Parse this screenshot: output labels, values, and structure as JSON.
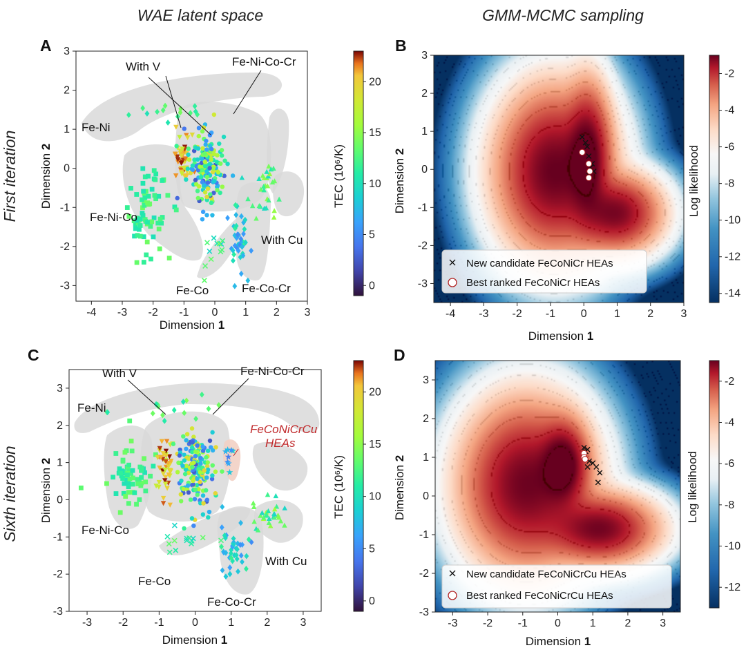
{
  "figure": {
    "col_titles": [
      "WAE latent space",
      "GMM-MCMC sampling"
    ],
    "row_titles": [
      "First iteration",
      "Sixth iteration"
    ],
    "dim1": "Dimension ",
    "dim2": "Dimension ",
    "dim_num1": "1",
    "dim_num2": "2"
  },
  "chart_data": [
    {
      "panel": "A",
      "type": "scatter",
      "title": "WAE latent space",
      "xlabel": "Dimension 1",
      "ylabel": "Dimension 2",
      "xlim": [
        -4.5,
        3
      ],
      "ylim": [
        -3.4,
        3
      ],
      "xticks": [
        -4,
        -3,
        -2,
        -1,
        0,
        1,
        2,
        3
      ],
      "yticks": [
        -3,
        -2,
        -1,
        0,
        1,
        2,
        3
      ],
      "colorbar": {
        "label": "TEC (10⁶/K)",
        "ticks": [
          0,
          5,
          10,
          15,
          20
        ],
        "range": [
          -1,
          23
        ]
      },
      "clusters": [
        {
          "name": "Fe-Ni",
          "marker": "diamond",
          "center": [
            -1.4,
            1.45
          ],
          "spread": [
            1.5,
            0.35
          ],
          "tec": [
            10,
            15
          ],
          "n": 14
        },
        {
          "name": "Fe-Ni-Co",
          "marker": "square",
          "center": [
            -2.2,
            -1.1
          ],
          "spread": [
            0.8,
            1.2
          ],
          "tec": [
            10,
            14
          ],
          "n": 70
        },
        {
          "name": "With V",
          "marker": "triangle-down",
          "center": [
            -1.05,
            0.25
          ],
          "spread": [
            0.3,
            0.7
          ],
          "tec": [
            17,
            23
          ],
          "n": 45
        },
        {
          "name": "Fe-Ni-Co-Cr",
          "marker": "circle",
          "center": [
            -0.3,
            0.0
          ],
          "spread": [
            0.6,
            1.1
          ],
          "tec": [
            2,
            20
          ],
          "n": 180
        },
        {
          "name": "Fe-Co",
          "marker": "cross",
          "center": [
            -0.1,
            -2.1
          ],
          "spread": [
            0.5,
            0.6
          ],
          "tec": [
            9,
            14
          ],
          "n": 12
        },
        {
          "name": "Fe-Co-Cr",
          "marker": "diamond",
          "center": [
            0.75,
            -1.8
          ],
          "spread": [
            0.4,
            0.9
          ],
          "tec": [
            5,
            12
          ],
          "n": 40
        },
        {
          "name": "With Cu",
          "marker": "triangle-up",
          "center": [
            1.65,
            -0.6
          ],
          "spread": [
            0.6,
            0.8
          ],
          "tec": [
            9,
            16
          ],
          "n": 30
        }
      ],
      "region_labels": [
        "With V",
        "Fe-Ni-Co-Cr",
        "Fe-Ni",
        "Fe-Ni-Co",
        "With Cu",
        "Fe-Co",
        "Fe-Co-Cr"
      ]
    },
    {
      "panel": "B",
      "type": "heatmap",
      "title": "GMM-MCMC sampling",
      "xlabel": "Dimension 1",
      "ylabel": "Dimension 2",
      "xlim": [
        -4.5,
        3
      ],
      "ylim": [
        -3.5,
        3
      ],
      "xticks": [
        -4,
        -3,
        -2,
        -1,
        0,
        1,
        2,
        3
      ],
      "yticks": [
        -3,
        -2,
        -1,
        0,
        1,
        2,
        3
      ],
      "colorbar": {
        "label": "Log likelihood",
        "ticks": [
          -2,
          -4,
          -6,
          -8,
          -10,
          -12,
          -14
        ],
        "range": [
          -14.5,
          -1
        ]
      },
      "gaussians": [
        {
          "mu": [
            -0.9,
            -0.05
          ],
          "sigma": [
            0.75,
            0.95
          ],
          "w": 1.0
        },
        {
          "mu": [
            0.1,
            0.3
          ],
          "sigma": [
            0.32,
            0.85
          ],
          "w": 1.1
        },
        {
          "mu": [
            0.95,
            -1.15
          ],
          "sigma": [
            0.6,
            0.45
          ],
          "w": 0.85
        }
      ],
      "candidates": [
        [
          -0.05,
          0.85
        ],
        [
          0.05,
          0.7
        ],
        [
          0.1,
          0.6
        ],
        [
          0.15,
          0.35
        ],
        [
          0.25,
          0.15
        ],
        [
          0.2,
          0.05
        ],
        [
          0.3,
          -0.05
        ],
        [
          0.15,
          -0.15
        ]
      ],
      "best_ranked": [
        [
          -0.05,
          0.45
        ],
        [
          0.15,
          0.15
        ],
        [
          0.18,
          -0.05
        ],
        [
          0.15,
          -0.22
        ]
      ],
      "legend": [
        "New candidate FeCoNiCr HEAs",
        "Best ranked FeCoNiCr HEAs"
      ]
    },
    {
      "panel": "C",
      "type": "scatter",
      "title": "",
      "xlabel": "Dimension 1",
      "ylabel": "Dimension 2",
      "xlim": [
        -3.5,
        3.5
      ],
      "ylim": [
        -3,
        3.5
      ],
      "xticks": [
        -3,
        -2,
        -1,
        0,
        1,
        2,
        3
      ],
      "yticks": [
        -3,
        -2,
        -1,
        0,
        1,
        2,
        3
      ],
      "colorbar": {
        "label": "TEC (10⁶/K)",
        "ticks": [
          0,
          5,
          10,
          15,
          20
        ],
        "range": [
          -1,
          23
        ]
      },
      "clusters": [
        {
          "name": "Fe-Ni",
          "marker": "diamond",
          "center": [
            -0.4,
            2.45
          ],
          "spread": [
            2.2,
            0.35
          ],
          "tec": [
            10,
            15
          ],
          "n": 16
        },
        {
          "name": "Fe-Ni-Co",
          "marker": "square",
          "center": [
            -1.9,
            0.7
          ],
          "spread": [
            0.7,
            1.0
          ],
          "tec": [
            10,
            14
          ],
          "n": 65
        },
        {
          "name": "With V",
          "marker": "triangle-down",
          "center": [
            -0.85,
            0.8
          ],
          "spread": [
            0.3,
            1.0
          ],
          "tec": [
            17,
            23
          ],
          "n": 45
        },
        {
          "name": "Fe-Ni-Co-Cr",
          "marker": "circle",
          "center": [
            0.0,
            0.9
          ],
          "spread": [
            0.6,
            1.1
          ],
          "tec": [
            2,
            20
          ],
          "n": 180
        },
        {
          "name": "FeCoNiCrCu HEAs",
          "marker": "star",
          "center": [
            0.95,
            1.0
          ],
          "spread": [
            0.15,
            0.4
          ],
          "tec": [
            3,
            10
          ],
          "n": 8
        },
        {
          "name": "Fe-Co",
          "marker": "cross",
          "center": [
            -0.3,
            -1.1
          ],
          "spread": [
            1.0,
            0.4
          ],
          "tec": [
            9,
            14
          ],
          "n": 14
        },
        {
          "name": "Fe-Co-Cr",
          "marker": "diamond",
          "center": [
            1.1,
            -1.3
          ],
          "spread": [
            0.5,
            0.7
          ],
          "tec": [
            5,
            12
          ],
          "n": 40
        },
        {
          "name": "With Cu",
          "marker": "triangle-up",
          "center": [
            2.0,
            -0.45
          ],
          "spread": [
            0.5,
            0.5
          ],
          "tec": [
            9,
            16
          ],
          "n": 30
        }
      ],
      "region_labels": [
        "With V",
        "Fe-Ni-Co-Cr",
        "Fe-Ni",
        "FeCoNiCrCu",
        "HEAs",
        "Fe-Ni-Co",
        "With Cu",
        "Fe-Co",
        "Fe-Co-Cr"
      ]
    },
    {
      "panel": "D",
      "type": "heatmap",
      "title": "",
      "xlabel": "Dimension 1",
      "ylabel": "Dimension 2",
      "xlim": [
        -3.5,
        3.5
      ],
      "ylim": [
        -3,
        3.5
      ],
      "xticks": [
        -3,
        -2,
        -1,
        0,
        1,
        2,
        3
      ],
      "yticks": [
        -3,
        -2,
        -1,
        0,
        1,
        2,
        3
      ],
      "colorbar": {
        "label": "Log likelihood",
        "ticks": [
          -2,
          -4,
          -6,
          -8,
          -10,
          -12
        ],
        "range": [
          -13,
          -1
        ]
      },
      "gaussians": [
        {
          "mu": [
            -0.9,
            0.3
          ],
          "sigma": [
            0.85,
            1.0
          ],
          "w": 0.95
        },
        {
          "mu": [
            0.15,
            0.8
          ],
          "sigma": [
            0.35,
            0.55
          ],
          "w": 1.15
        },
        {
          "mu": [
            1.2,
            -0.85
          ],
          "sigma": [
            0.75,
            0.42
          ],
          "w": 0.9
        }
      ],
      "candidates": [
        [
          0.75,
          1.25
        ],
        [
          0.85,
          1.2
        ],
        [
          0.8,
          1.15
        ],
        [
          0.9,
          0.9
        ],
        [
          1.0,
          0.85
        ],
        [
          1.1,
          0.75
        ],
        [
          0.85,
          0.75
        ],
        [
          1.2,
          0.6
        ],
        [
          1.15,
          0.35
        ]
      ],
      "best_ranked": [
        [
          0.75,
          1.1
        ],
        [
          0.75,
          1.0
        ],
        [
          0.78,
          0.95
        ]
      ],
      "legend": [
        "New candidate FeCoNiCrCu HEAs",
        "Best ranked FeCoNiCrCu HEAs"
      ]
    }
  ]
}
